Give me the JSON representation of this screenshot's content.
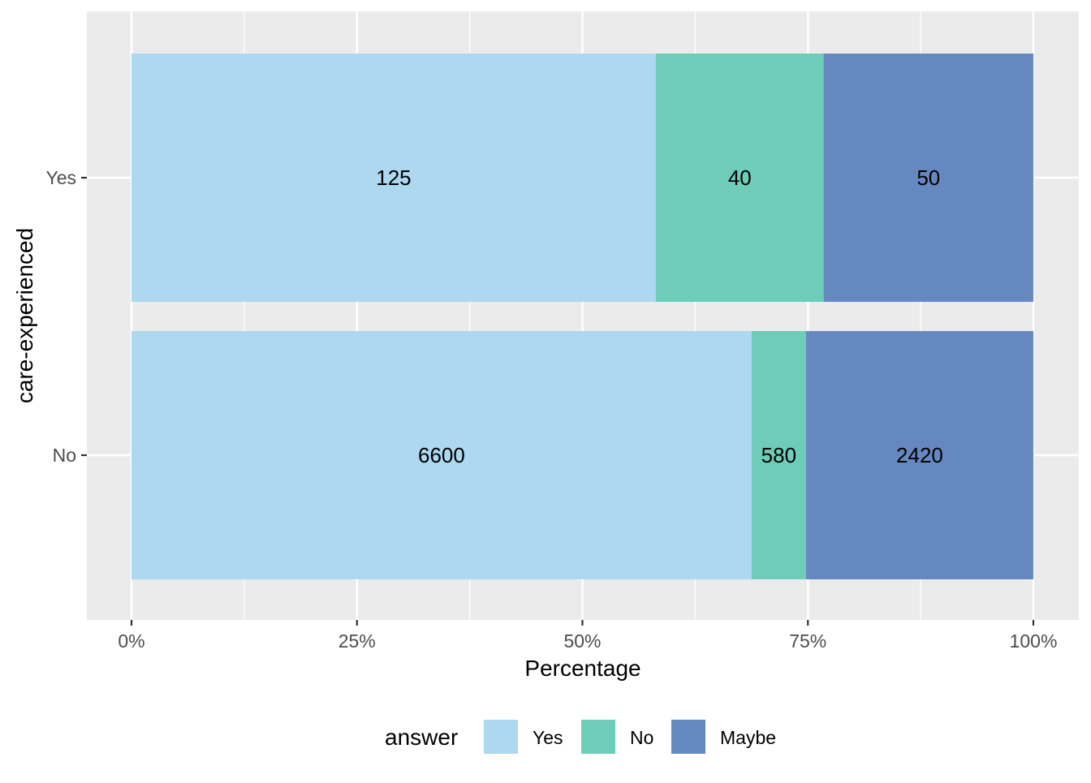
{
  "chart_data": {
    "type": "bar",
    "orientation": "horizontal",
    "stacked": true,
    "normalized": true,
    "title": "",
    "xlabel": "Percentage",
    "ylabel": "care-experienced",
    "xlim": [
      0,
      1
    ],
    "x_ticks": [
      {
        "value": 0,
        "label": "0%"
      },
      {
        "value": 0.25,
        "label": "25%"
      },
      {
        "value": 0.5,
        "label": "50%"
      },
      {
        "value": 0.75,
        "label": "75%"
      },
      {
        "value": 1,
        "label": "100%"
      }
    ],
    "categories": [
      "Yes",
      "No"
    ],
    "series": [
      {
        "name": "Yes",
        "color": "#ADD8F0",
        "values": [
          125,
          6600
        ]
      },
      {
        "name": "No",
        "color": "#6ECDB8",
        "values": [
          40,
          580
        ]
      },
      {
        "name": "Maybe",
        "color": "#6688C0",
        "values": [
          50,
          2420
        ]
      }
    ],
    "legend": {
      "title": "answer",
      "position": "bottom"
    },
    "grid": true,
    "panel_background": "#EBEBEB"
  }
}
